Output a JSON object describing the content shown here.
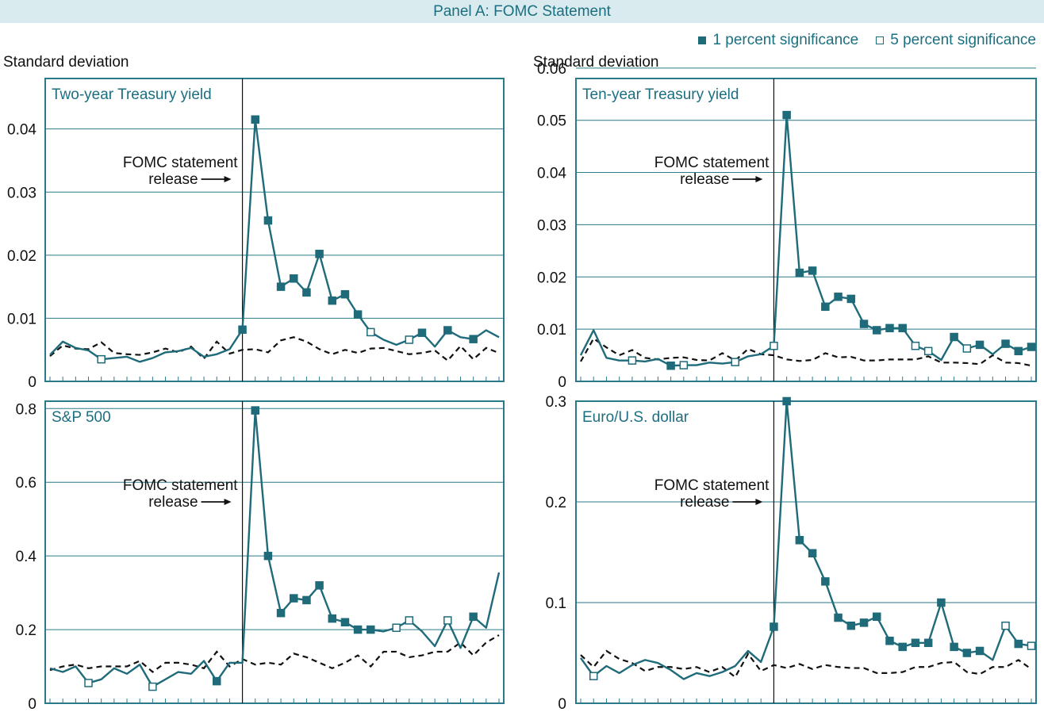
{
  "banner": {
    "title": "Panel A: FOMC Statement"
  },
  "legend": {
    "sig1": "1 percent significance",
    "sig5": "5 percent significance"
  },
  "left_ylabel": "Standard deviation",
  "right_ylabel": "Standard deviation",
  "colors": {
    "series": "#1f6b7a",
    "grid": "#2a7a8a",
    "baseline": "#111111",
    "banner_bg": "#d9ebee",
    "banner_text": "#1c6f80"
  },
  "chart_data": [
    {
      "type": "line",
      "title": "Two-year Treasury yield",
      "annotation": [
        "FOMC statement",
        "release"
      ],
      "ylim": [
        0,
        0.048
      ],
      "yticks": [
        0,
        0.01,
        0.02,
        0.03,
        0.04
      ],
      "yticklabels": [
        "0",
        "0.01",
        "0.02",
        "0.03",
        "0.04"
      ],
      "event_index": 15,
      "series": [
        {
          "values": [
            0.0042,
            0.0063,
            0.0053,
            0.0049,
            0.0035,
            0.0037,
            0.0039,
            0.0031,
            0.0037,
            0.0046,
            0.0048,
            0.0053,
            0.0039,
            0.0043,
            0.0051,
            0.0082,
            0.0415,
            0.0255,
            0.015,
            0.0163,
            0.0141,
            0.0202,
            0.0128,
            0.0138,
            0.0106,
            0.0078,
            0.0066,
            0.0058,
            0.0066,
            0.0077,
            0.0055,
            0.0081,
            0.007,
            0.0067,
            0.0081,
            0.007
          ],
          "markers": [
            0,
            0,
            0,
            0,
            2,
            0,
            0,
            0,
            0,
            0,
            0,
            0,
            0,
            0,
            0,
            1,
            1,
            1,
            1,
            1,
            1,
            1,
            1,
            1,
            1,
            2,
            0,
            0,
            2,
            1,
            0,
            1,
            0,
            1,
            0,
            0
          ]
        },
        {
          "name": "baseline",
          "style": "dashed",
          "values": [
            0.004,
            0.0057,
            0.0052,
            0.0051,
            0.0062,
            0.0045,
            0.0043,
            0.0042,
            0.0046,
            0.0052,
            0.0046,
            0.0055,
            0.0036,
            0.0063,
            0.0044,
            0.005,
            0.0051,
            0.0046,
            0.0065,
            0.007,
            0.0063,
            0.0051,
            0.0043,
            0.005,
            0.0045,
            0.0052,
            0.0053,
            0.0048,
            0.0043,
            0.0045,
            0.0049,
            0.0033,
            0.0056,
            0.0035,
            0.0053,
            0.0045
          ]
        }
      ]
    },
    {
      "type": "line",
      "title": "Ten-year Treasury yield",
      "annotation": [
        "FOMC statement",
        "release"
      ],
      "ylim": [
        0,
        0.058
      ],
      "yticks": [
        0,
        0.01,
        0.02,
        0.03,
        0.04,
        0.05,
        0.06
      ],
      "yticklabels": [
        "0",
        "0.01",
        "0.02",
        "0.03",
        "0.04",
        "0.05",
        "0.06"
      ],
      "event_index": 15,
      "series": [
        {
          "values": [
            0.005,
            0.0098,
            0.0045,
            0.004,
            0.004,
            0.0038,
            0.0043,
            0.003,
            0.0031,
            0.0031,
            0.0036,
            0.0034,
            0.0037,
            0.0048,
            0.0052,
            0.0068,
            0.051,
            0.0208,
            0.0212,
            0.0143,
            0.0162,
            0.0158,
            0.011,
            0.0098,
            0.0102,
            0.0102,
            0.0068,
            0.0058,
            0.0041,
            0.0085,
            0.0063,
            0.007,
            0.0052,
            0.0072,
            0.0058,
            0.0066
          ],
          "markers": [
            0,
            0,
            0,
            0,
            2,
            0,
            0,
            1,
            2,
            0,
            0,
            0,
            2,
            0,
            0,
            2,
            1,
            1,
            1,
            1,
            1,
            1,
            1,
            1,
            1,
            1,
            2,
            2,
            0,
            1,
            2,
            1,
            0,
            1,
            1,
            1
          ]
        },
        {
          "name": "baseline",
          "style": "dashed",
          "values": [
            0.0038,
            0.0082,
            0.0065,
            0.005,
            0.006,
            0.0045,
            0.0042,
            0.0045,
            0.0046,
            0.0041,
            0.004,
            0.0054,
            0.004,
            0.0062,
            0.0052,
            0.005,
            0.0042,
            0.0039,
            0.0041,
            0.0054,
            0.0046,
            0.0047,
            0.004,
            0.004,
            0.0042,
            0.0042,
            0.0042,
            0.0048,
            0.0036,
            0.0036,
            0.0035,
            0.0033,
            0.005,
            0.0036,
            0.0035,
            0.003
          ]
        }
      ]
    },
    {
      "type": "line",
      "title": "S&P 500",
      "annotation": [
        "FOMC statement",
        "release"
      ],
      "ylim": [
        0,
        0.82
      ],
      "yticks": [
        0,
        0.2,
        0.4,
        0.6,
        0.8
      ],
      "yticklabels": [
        "0",
        "0.2",
        "0.4",
        "0.6",
        "0.8"
      ],
      "event_index": 15,
      "series": [
        {
          "values": [
            0.095,
            0.085,
            0.1,
            0.055,
            0.065,
            0.095,
            0.08,
            0.105,
            0.045,
            0.065,
            0.085,
            0.08,
            0.115,
            0.06,
            0.11,
            0.11,
            0.795,
            0.4,
            0.245,
            0.285,
            0.28,
            0.32,
            0.23,
            0.22,
            0.2,
            0.2,
            0.195,
            0.205,
            0.225,
            0.195,
            0.155,
            0.225,
            0.15,
            0.235,
            0.205,
            0.355
          ],
          "markers": [
            0,
            0,
            0,
            2,
            0,
            0,
            0,
            0,
            2,
            0,
            0,
            0,
            0,
            1,
            0,
            0,
            1,
            1,
            1,
            1,
            1,
            1,
            1,
            1,
            1,
            1,
            0,
            2,
            2,
            0,
            0,
            2,
            0,
            1,
            0,
            0
          ]
        },
        {
          "name": "baseline",
          "style": "dashed",
          "values": [
            0.09,
            0.1,
            0.105,
            0.095,
            0.1,
            0.1,
            0.1,
            0.115,
            0.085,
            0.11,
            0.11,
            0.105,
            0.095,
            0.14,
            0.1,
            0.12,
            0.105,
            0.11,
            0.105,
            0.135,
            0.125,
            0.11,
            0.095,
            0.11,
            0.13,
            0.1,
            0.14,
            0.14,
            0.125,
            0.13,
            0.14,
            0.14,
            0.165,
            0.13,
            0.165,
            0.185
          ]
        }
      ]
    },
    {
      "type": "line",
      "title": "Euro/U.S. dollar",
      "annotation": [
        "FOMC statement",
        "release"
      ],
      "ylim": [
        0,
        0.3
      ],
      "yticks": [
        0,
        0.1,
        0.2,
        0.3
      ],
      "yticklabels": [
        "0",
        "0.1",
        "0.2",
        "0.3"
      ],
      "event_index": 15,
      "series": [
        {
          "values": [
            0.045,
            0.027,
            0.037,
            0.03,
            0.038,
            0.043,
            0.04,
            0.033,
            0.024,
            0.03,
            0.027,
            0.031,
            0.037,
            0.052,
            0.041,
            0.076,
            0.3,
            0.162,
            0.149,
            0.121,
            0.085,
            0.077,
            0.08,
            0.086,
            0.062,
            0.056,
            0.06,
            0.06,
            0.1,
            0.056,
            0.05,
            0.052,
            0.043,
            0.077,
            0.059,
            0.057
          ],
          "markers": [
            0,
            2,
            0,
            0,
            0,
            0,
            0,
            0,
            0,
            0,
            0,
            0,
            0,
            0,
            0,
            1,
            1,
            1,
            1,
            1,
            1,
            1,
            1,
            1,
            1,
            1,
            1,
            1,
            1,
            1,
            1,
            1,
            0,
            2,
            1,
            2
          ]
        },
        {
          "name": "baseline",
          "style": "dashed",
          "values": [
            0.048,
            0.036,
            0.052,
            0.044,
            0.04,
            0.032,
            0.036,
            0.036,
            0.034,
            0.036,
            0.031,
            0.036,
            0.026,
            0.049,
            0.032,
            0.038,
            0.035,
            0.039,
            0.034,
            0.038,
            0.036,
            0.035,
            0.035,
            0.03,
            0.03,
            0.031,
            0.036,
            0.036,
            0.04,
            0.041,
            0.031,
            0.029,
            0.036,
            0.036,
            0.043,
            0.034
          ]
        }
      ]
    }
  ]
}
